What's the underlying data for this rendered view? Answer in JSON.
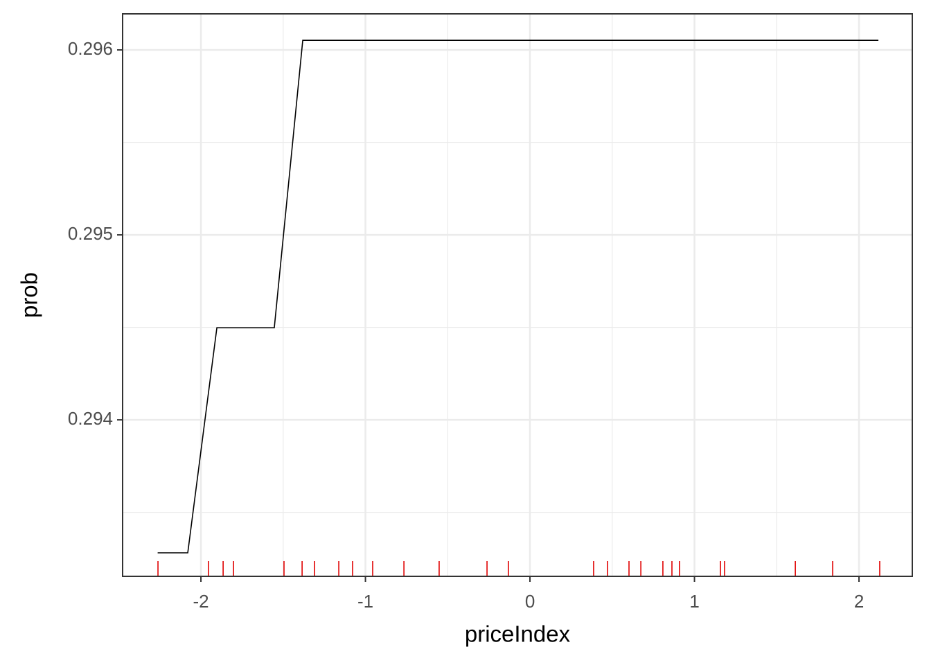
{
  "chart_data": {
    "type": "line",
    "x_label": "priceIndex",
    "y_label": "prob",
    "x": [
      -2.263,
      -2.08,
      -1.903,
      -1.554,
      -1.381,
      2.118
    ],
    "values": [
      0.293281,
      0.293281,
      0.294498,
      0.294498,
      0.296052,
      0.296052
    ],
    "color": "#000000",
    "rug": {
      "color": "#e00000",
      "x": [
        -2.261,
        -1.954,
        -1.865,
        -1.802,
        -1.495,
        -1.385,
        -1.309,
        -1.162,
        -1.078,
        -0.956,
        -0.766,
        -0.552,
        -0.261,
        -0.131,
        0.387,
        0.472,
        0.602,
        0.674,
        0.808,
        0.863,
        0.909,
        1.158,
        1.183,
        1.613,
        1.84,
        2.126
      ]
    },
    "xlim": [
      -2.476,
      2.324
    ],
    "ylim": [
      0.293154,
      0.296195
    ],
    "xticks": [
      -2,
      -1,
      0,
      1,
      2
    ],
    "yticks": [
      0.294,
      0.295,
      0.296
    ],
    "x_minor_ticks": [
      -1.5,
      -0.5,
      0.5,
      1.5
    ],
    "y_minor_ticks": [
      0.2935,
      0.2945,
      0.2955
    ],
    "grid": true
  }
}
